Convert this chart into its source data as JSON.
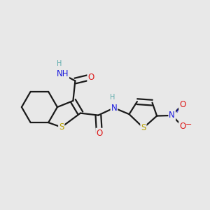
{
  "bg_color": "#e8e8e8",
  "bond_color": "#1a1a1a",
  "bond_width": 1.6,
  "atom_colors": {
    "C": "#1a1a1a",
    "H": "#5aaaaa",
    "N": "#1a1add",
    "O": "#dd1a1a",
    "S": "#b8a000"
  },
  "font_size_atom": 8.5,
  "font_size_small": 7.0,
  "font_size_super": 6.0
}
